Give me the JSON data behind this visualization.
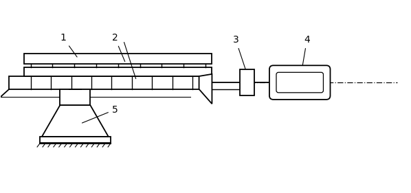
{
  "bg_color": "#ffffff",
  "line_color": "#000000",
  "figsize": [
    5.98,
    2.81
  ],
  "dpi": 100,
  "xlim": [
    0,
    9.5
  ],
  "ylim": [
    0,
    3.1
  ]
}
